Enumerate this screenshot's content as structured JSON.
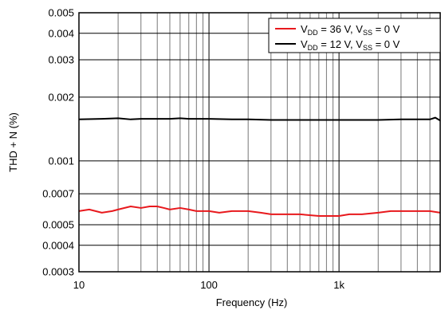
{
  "chart_data": {
    "type": "line",
    "xlabel": "Frequency (Hz)",
    "ylabel": "THD + N (%)",
    "x_scale": "log",
    "y_scale": "log",
    "xlim": [
      10,
      6000
    ],
    "ylim": [
      0.0003,
      0.005
    ],
    "grid": true,
    "legend_position": "top-right",
    "x_ticks": [
      {
        "value": 10,
        "label": "10"
      },
      {
        "value": 100,
        "label": "100"
      },
      {
        "value": 1000,
        "label": "1k"
      }
    ],
    "y_ticks": [
      {
        "value": 0.005,
        "label": "0.005"
      },
      {
        "value": 0.004,
        "label": "0.004"
      },
      {
        "value": 0.003,
        "label": "0.003"
      },
      {
        "value": 0.002,
        "label": "0.002"
      },
      {
        "value": 0.001,
        "label": "0.001"
      },
      {
        "value": 0.0007,
        "label": "0.0007"
      },
      {
        "value": 0.0005,
        "label": "0.0005"
      },
      {
        "value": 0.0004,
        "label": "0.0004"
      },
      {
        "value": 0.0003,
        "label": "0.0003"
      }
    ],
    "series": [
      {
        "legend": {
          "v1": "V",
          "s1": "DD",
          "m": " = 36 V, V",
          "s2": "SS",
          "e": " = 0 V"
        },
        "color": "#e8191d",
        "x": [
          10,
          12,
          15,
          18,
          20,
          25,
          30,
          35,
          40,
          45,
          50,
          60,
          70,
          80,
          100,
          120,
          150,
          200,
          250,
          300,
          400,
          500,
          700,
          1000,
          1200,
          1500,
          2000,
          2500,
          3000,
          4000,
          5000,
          6000
        ],
        "y": [
          0.00058,
          0.00059,
          0.00057,
          0.00058,
          0.00059,
          0.00061,
          0.0006,
          0.00061,
          0.00061,
          0.0006,
          0.00059,
          0.0006,
          0.00059,
          0.00058,
          0.00058,
          0.00057,
          0.00058,
          0.00058,
          0.00057,
          0.00056,
          0.00056,
          0.00056,
          0.00055,
          0.00055,
          0.00056,
          0.00056,
          0.00057,
          0.00058,
          0.00058,
          0.00058,
          0.00058,
          0.00057
        ]
      },
      {
        "legend": {
          "v1": "V",
          "s1": "DD",
          "m": " = 12 V, V",
          "s2": "SS",
          "e": " = 0 V"
        },
        "color": "#000000",
        "x": [
          10,
          15,
          20,
          25,
          30,
          40,
          50,
          60,
          70,
          80,
          100,
          150,
          200,
          300,
          500,
          700,
          1000,
          2000,
          3000,
          4000,
          5000,
          5500,
          6000
        ],
        "y": [
          0.00157,
          0.00158,
          0.00159,
          0.00157,
          0.00158,
          0.00158,
          0.00158,
          0.00159,
          0.00158,
          0.00158,
          0.00158,
          0.00157,
          0.00157,
          0.00156,
          0.00156,
          0.00156,
          0.00156,
          0.00156,
          0.00157,
          0.00157,
          0.00157,
          0.0016,
          0.00155
        ]
      }
    ]
  }
}
